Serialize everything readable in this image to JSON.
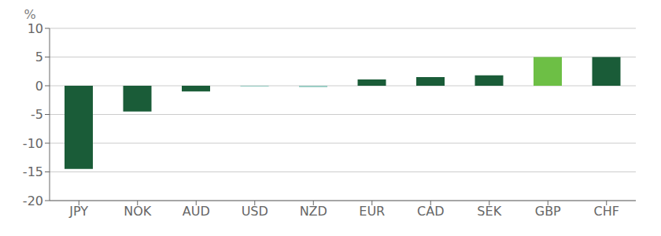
{
  "chart_data": {
    "type": "bar",
    "ylabel": "%",
    "categories": [
      "JPY",
      "NOK",
      "AUD",
      "USD",
      "NZD",
      "EUR",
      "CAD",
      "SEK",
      "GBP",
      "CHF"
    ],
    "values": [
      -14.5,
      -4.5,
      -1.0,
      -0.15,
      -0.25,
      1.1,
      1.5,
      1.8,
      5.0,
      5.0
    ],
    "colors": [
      "#1a5c38",
      "#1a5c38",
      "#1a5c38",
      "#8ec8be",
      "#8ec8be",
      "#1a5c38",
      "#1a5c38",
      "#1a5c38",
      "#6dbf45",
      "#1a5c38"
    ],
    "ylim": [
      -20,
      10
    ],
    "yticks": [
      -20,
      -15,
      -10,
      -5,
      0,
      5,
      10
    ],
    "grid": true
  }
}
